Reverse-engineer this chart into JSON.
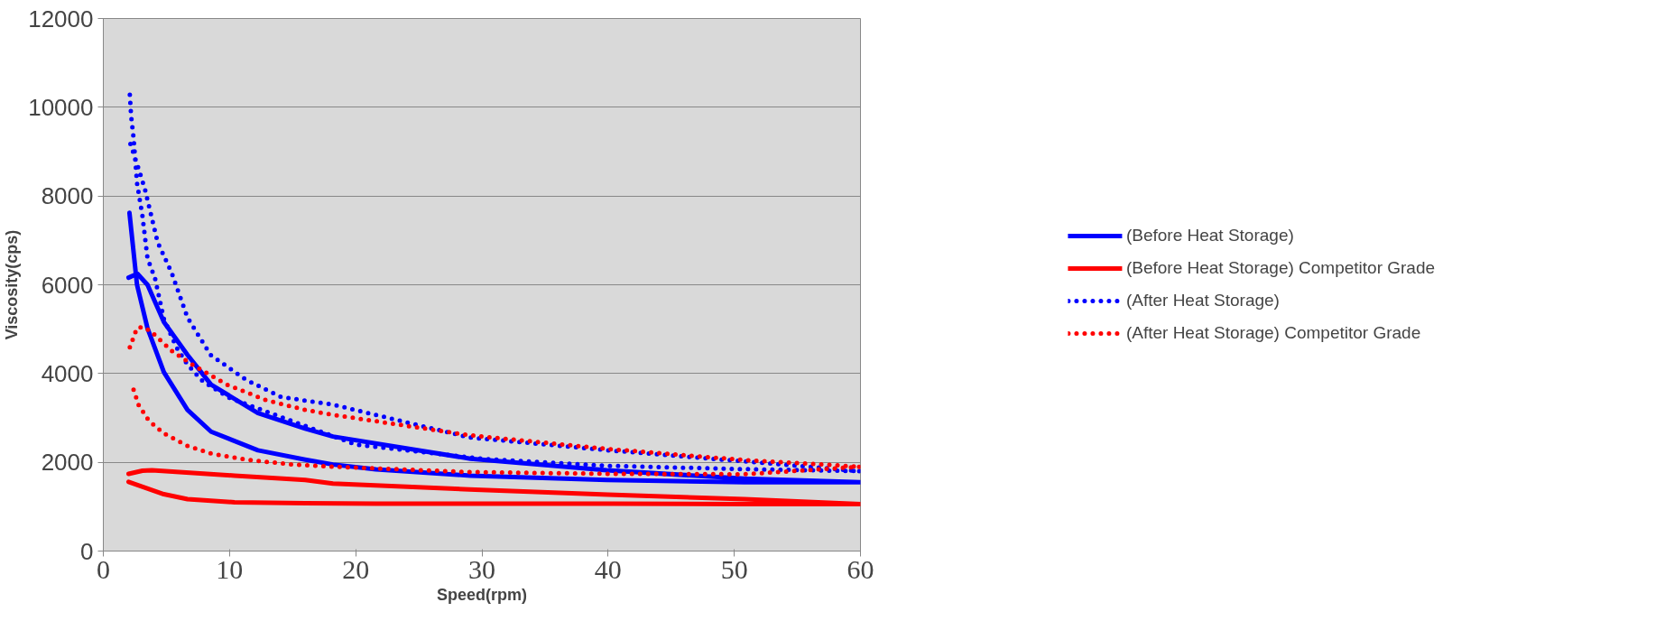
{
  "chart_data": {
    "type": "line",
    "xlabel": "Speed(rpm)",
    "ylabel": "Viscosity(cps)",
    "xlim": [
      0,
      60
    ],
    "ylim": [
      0,
      12000
    ],
    "xticks": [
      0,
      10,
      20,
      30,
      40,
      50,
      60
    ],
    "yticks": [
      0,
      2000,
      4000,
      6000,
      8000,
      10000,
      12000
    ],
    "grid": "y",
    "legend": "right",
    "series": [
      {
        "name": "(Before Heat Storage)",
        "color": "#0000ff",
        "line_style": "solid",
        "x": [
          2.07,
          2.67,
          3.5,
          4.8,
          6.67,
          8.54,
          12.25,
          16,
          18.2,
          21.6,
          29.1,
          39.9,
          50.8,
          60,
          50.8,
          39.9,
          29.1,
          18.2,
          16,
          12.25,
          8.54,
          6.67,
          4.8,
          3.5,
          2.7,
          2.0
        ],
        "values": [
          7620,
          6000,
          5020,
          4030,
          3180,
          2690,
          2270,
          2060,
          1950,
          1840,
          1700,
          1600,
          1550,
          1550,
          1630,
          1820,
          2080,
          2580,
          2760,
          3110,
          3750,
          4420,
          5160,
          6000,
          6250,
          6160
        ]
      },
      {
        "name": "(Before Heat Storage) Competitor Grade",
        "color": "#ff0000",
        "line_style": "solid",
        "x": [
          2.0,
          4.8,
          6.67,
          10.4,
          16,
          21.6,
          29,
          40,
          50.8,
          60,
          50.8,
          40,
          29,
          18.2,
          16,
          10.4,
          3.85,
          3.1,
          2.0
        ],
        "values": [
          1560,
          1280,
          1170,
          1100,
          1080,
          1070,
          1070,
          1070,
          1060,
          1060,
          1170,
          1270,
          1390,
          1520,
          1600,
          1700,
          1820,
          1810,
          1740
        ]
      },
      {
        "name": "(After Heat Storage)",
        "color": "#0000ff",
        "line_style": "dotted",
        "x": [
          2.1,
          2.2,
          2.4,
          2.67,
          3.1,
          3.5,
          4.1,
          4.8,
          5.8,
          6.67,
          7.9,
          10,
          20,
          30,
          40,
          50,
          60,
          50.8,
          40,
          29,
          18.2,
          14.1,
          11.3,
          8.5,
          6.67,
          5.4,
          4.3,
          3.3,
          2.8,
          2.0
        ],
        "values": [
          10280,
          9810,
          9300,
          8290,
          7550,
          6600,
          6140,
          5230,
          4590,
          4200,
          3820,
          3450,
          2400,
          2080,
          1920,
          1850,
          1800,
          2020,
          2270,
          2560,
          3300,
          3470,
          3860,
          4420,
          5260,
          6280,
          6960,
          8150,
          8610,
          9300
        ]
      },
      {
        "name": "(After Heat Storage) Competitor Grade",
        "color": "#ff0000",
        "line_style": "dotted",
        "x": [
          2.1,
          2.67,
          3.2,
          3.85,
          5.5,
          7.4,
          9.8,
          12.9,
          16,
          18.2,
          29,
          40,
          50.8,
          60,
          50.8,
          40,
          29,
          18.2,
          15,
          11.3,
          8.5,
          6.67,
          4.8,
          3.6,
          2.8,
          2.3
        ],
        "values": [
          4590,
          5030,
          5050,
          4930,
          4490,
          4140,
          3750,
          3400,
          3180,
          3070,
          2610,
          2300,
          2050,
          1900,
          1730,
          1740,
          1780,
          1900,
          1950,
          2060,
          2200,
          2370,
          2650,
          2940,
          3290,
          3720
        ]
      }
    ]
  }
}
